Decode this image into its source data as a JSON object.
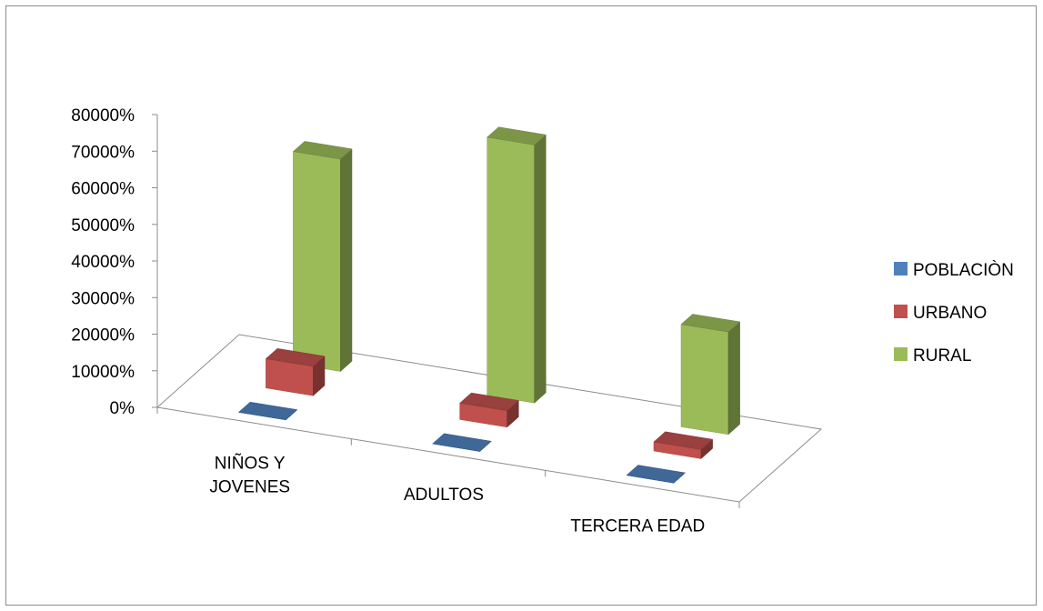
{
  "chart_data": {
    "type": "bar",
    "bar_style": "3d-clustered-depth",
    "categories": [
      "NIÑOS Y JOVENES",
      "ADULTOS",
      "TERCERA EDAD"
    ],
    "category_label_lines": [
      [
        "NIÑOS Y",
        "JOVENES"
      ],
      [
        "ADULTOS"
      ],
      [
        "TERCERA EDAD"
      ]
    ],
    "y_tick_labels": [
      "0%",
      "10000%",
      "20000%",
      "30000%",
      "40000%",
      "50000%",
      "60000%",
      "70000%",
      "80000%"
    ],
    "ylim": [
      0,
      800
    ],
    "series": [
      {
        "name": "POBLACIÒN",
        "color": "#4F81BD",
        "values": [
          0,
          0,
          0
        ]
      },
      {
        "name": "URBANO",
        "color": "#C0504D",
        "values": [
          80,
          45,
          25
        ]
      },
      {
        "name": "RURAL",
        "color": "#9BBB59",
        "values": [
          580,
          705,
          280
        ]
      }
    ],
    "legend_position": "right",
    "grid": false
  }
}
